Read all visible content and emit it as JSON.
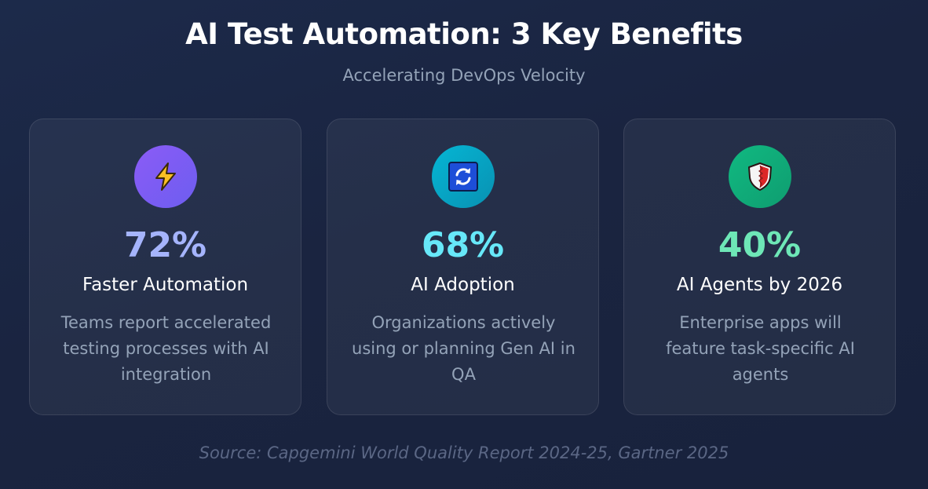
{
  "header": {
    "title": "AI Test Automation: 3 Key Benefits",
    "subtitle": "Accelerating DevOps Velocity"
  },
  "cards": [
    {
      "icon": "lightning-icon",
      "accent": "#a5b4fc",
      "circle_color": "#7c5cf5",
      "stat": "72%",
      "label": "Faster Automation",
      "description": "Teams report accelerated testing processes with AI integration"
    },
    {
      "icon": "refresh-icon",
      "accent": "#67e8f9",
      "circle_color": "#0aa5c8",
      "stat": "68%",
      "label": "AI Adoption",
      "description": "Organizations actively using or planning Gen AI in QA"
    },
    {
      "icon": "shield-icon",
      "accent": "#6ee7b7",
      "circle_color": "#10a878",
      "stat": "40%",
      "label": "AI Agents by 2026",
      "description": "Enterprise apps will feature task-specific AI agents"
    }
  ],
  "footer": {
    "source": "Source: Capgemini World Quality Report 2024-25, Gartner 2025"
  }
}
